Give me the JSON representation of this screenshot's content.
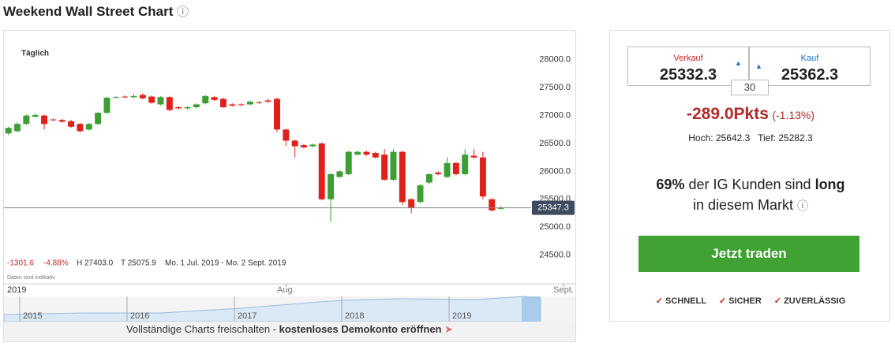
{
  "header": {
    "title": "Weekend Wall Street Chart",
    "info": "ⓘ"
  },
  "chart_data": {
    "type": "candlestick",
    "period": "Täglich",
    "open": [
      26680,
      26720,
      26850,
      26980,
      27000,
      26930,
      26920,
      26900,
      26850,
      26750,
      26850,
      27050,
      27330,
      27340,
      27330,
      27370,
      27340,
      27200,
      27330,
      27150,
      27130,
      27150,
      27220,
      27330,
      27300,
      27200,
      27200,
      27200,
      27240,
      27270,
      27300,
      26750,
      26550,
      26470,
      26450,
      26500,
      25500,
      25900,
      25950,
      26300,
      26350,
      26330,
      26300,
      25850,
      26350,
      25500,
      25450,
      25800,
      25980,
      25900,
      26150,
      25950,
      26280,
      26250,
      25500,
      25330
    ],
    "high": [
      26800,
      26880,
      27020,
      27040,
      27020,
      26950,
      26940,
      26920,
      26870,
      26870,
      27070,
      27340,
      27350,
      27360,
      27380,
      27400,
      27360,
      27350,
      27350,
      27170,
      27170,
      27220,
      27370,
      27350,
      27320,
      27220,
      27220,
      27270,
      27260,
      27300,
      27320,
      26770,
      26570,
      26490,
      26500,
      26520,
      25970,
      26020,
      26370,
      26370,
      26370,
      26350,
      26400,
      26400,
      26370,
      25520,
      25770,
      25970,
      26000,
      26250,
      26170,
      26400,
      26400,
      26350,
      25520,
      25380
    ],
    "low": [
      26650,
      26700,
      26830,
      26960,
      26750,
      26900,
      26870,
      26780,
      26700,
      26730,
      26830,
      27030,
      27310,
      27310,
      27310,
      27290,
      27210,
      27180,
      27080,
      27110,
      27110,
      27130,
      27200,
      27260,
      27130,
      27160,
      27170,
      27180,
      27210,
      27230,
      26700,
      26450,
      26250,
      26410,
      26430,
      25480,
      25100,
      25880,
      25930,
      26280,
      26280,
      26230,
      25830,
      25830,
      25400,
      25250,
      25430,
      25780,
      25930,
      25880,
      25930,
      25930,
      26230,
      25500,
      25280,
      25310
    ],
    "close": [
      26780,
      26850,
      27000,
      27010,
      26850,
      26920,
      26890,
      26800,
      26720,
      26850,
      27050,
      27320,
      27330,
      27330,
      27350,
      27310,
      27230,
      27330,
      27100,
      27130,
      27150,
      27200,
      27350,
      27280,
      27150,
      27180,
      27190,
      27250,
      27230,
      27250,
      26750,
      26550,
      26450,
      26430,
      26480,
      25500,
      25950,
      26000,
      26350,
      26350,
      26300,
      26250,
      25850,
      26350,
      25450,
      25350,
      25750,
      25950,
      25950,
      26150,
      25950,
      26300,
      26250,
      25550,
      25300,
      25347.3
    ],
    "up_color": "#3c9e33",
    "down_color": "#e0201b",
    "xlim": [
      -0.5,
      63.5
    ],
    "xticks": [
      {
        "value": 31,
        "label": "Aug."
      },
      {
        "value": 62,
        "label": "Sept."
      }
    ],
    "ylim": [
      24000,
      28520
    ],
    "yticks": [
      {
        "value": 24500,
        "label": "24500.0"
      },
      {
        "value": 25000,
        "label": "25000.0"
      },
      {
        "value": 25500,
        "label": "25500.0"
      },
      {
        "value": 26000,
        "label": "26000.0"
      },
      {
        "value": 26500,
        "label": "26500.0"
      },
      {
        "value": 27000,
        "label": "27000.0"
      },
      {
        "value": 27500,
        "label": "27500.0"
      },
      {
        "value": 28000,
        "label": "28000.0"
      }
    ],
    "last_price": 25347.3,
    "stats": {
      "change": "-1301.6",
      "change_pct": "-4.88%",
      "high": "H 27403.0",
      "low": "T 25075.9",
      "range": "Mo. 1 Jul. 2019 - Mo. 2 Sept. 2019"
    },
    "note": "Daten sind indikativ",
    "year": "2019"
  },
  "navigator": {
    "years": [
      "2015",
      "2016",
      "2017",
      "2018",
      "2019"
    ],
    "banner": "Vollständige Charts freischalten - ",
    "banner_link": "kostenloses Demokonto eröffnen"
  },
  "panel": {
    "sell_label": "Verkauf",
    "sell": "25332.3",
    "buy_label": "Kauf",
    "buy": "25362.3",
    "spread": "30",
    "change": "-289.0Pkts",
    "change_pct": "(-1.13%)",
    "high": "Hoch: 25642.3",
    "low": "Tief: 25282.3",
    "sentiment_pct": "69%",
    "sentiment_text": " der IG Kunden sind ",
    "sentiment_dir": "long",
    "sentiment_text2": "in diesem Markt ",
    "info": "ⓘ",
    "button": "Jetzt traden",
    "features": [
      "SCHNELL",
      "SICHER",
      "ZUVERLÄSSIG"
    ]
  }
}
